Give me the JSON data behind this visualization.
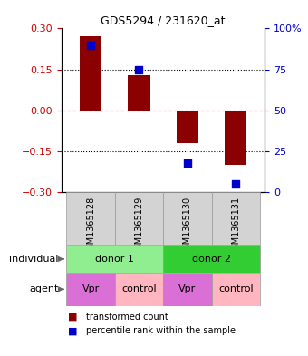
{
  "title": "GDS5294 / 231620_at",
  "categories": [
    "GSM1365128",
    "GSM1365129",
    "GSM1365130",
    "GSM1365131"
  ],
  "bar_values": [
    0.27,
    0.13,
    -0.12,
    -0.2
  ],
  "percentile_values": [
    90,
    75,
    18,
    5
  ],
  "bar_color": "#8B0000",
  "dot_color": "#0000CD",
  "ylim_left": [
    -0.3,
    0.3
  ],
  "ylim_right": [
    0,
    100
  ],
  "yticks_left": [
    -0.3,
    -0.15,
    0,
    0.15,
    0.3
  ],
  "yticks_right": [
    0,
    25,
    50,
    75,
    100
  ],
  "yticklabels_right": [
    "0",
    "25",
    "50",
    "75",
    "100%"
  ],
  "individual_groups": [
    {
      "label": "donor 1",
      "start": 0,
      "end": 2,
      "color": "#90EE90"
    },
    {
      "label": "donor 2",
      "start": 2,
      "end": 4,
      "color": "#32CD32"
    }
  ],
  "agent_groups": [
    {
      "label": "Vpr",
      "start": 0,
      "end": 1,
      "color": "#DA70D6"
    },
    {
      "label": "control",
      "start": 1,
      "end": 2,
      "color": "#FFB6C1"
    },
    {
      "label": "Vpr",
      "start": 2,
      "end": 3,
      "color": "#DA70D6"
    },
    {
      "label": "control",
      "start": 3,
      "end": 4,
      "color": "#FFB6C1"
    }
  ],
  "bar_width": 0.45,
  "dot_size": 35,
  "legend_items": [
    {
      "color": "#8B0000",
      "label": "transformed count"
    },
    {
      "color": "#0000CD",
      "label": "percentile rank within the sample"
    }
  ],
  "individual_label": "individual",
  "agent_label": "agent",
  "left_ytick_color": "#CC0000",
  "right_ytick_color": "#0000CC"
}
